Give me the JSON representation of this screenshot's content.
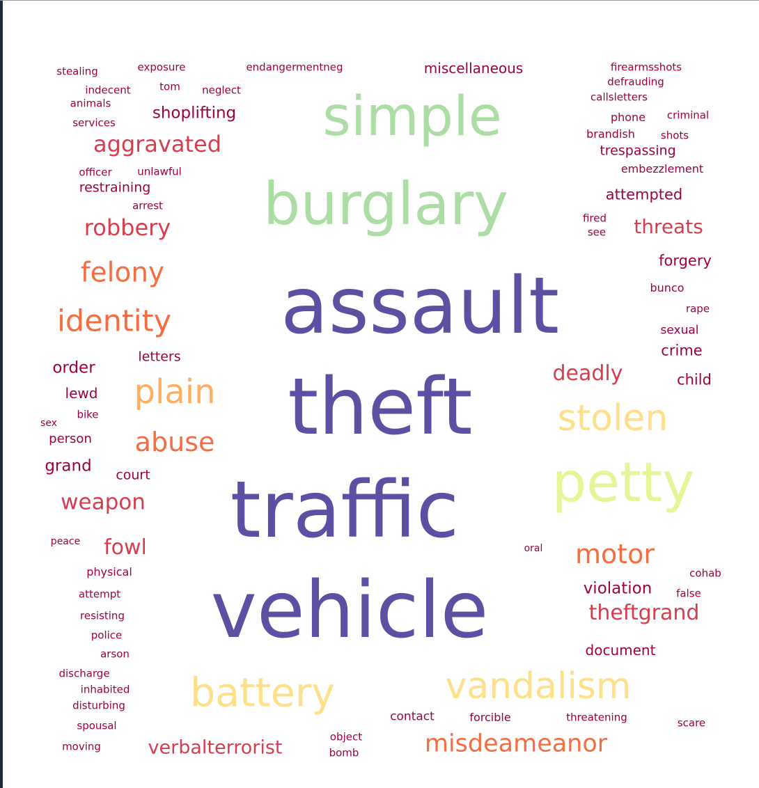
{
  "palette": {
    "dark_red": "#9e0142",
    "crimson": "#d53e4f",
    "orange": "#f46d43",
    "light_orange": "#fdae61",
    "yellow": "#fee08b",
    "pale_yellow": "#e6f598",
    "light_green": "#abdda4",
    "purple": "#5e4fa2"
  },
  "words": [
    {
      "text": "assault",
      "weight": 8,
      "color": "purple"
    },
    {
      "text": "theft",
      "weight": 8,
      "color": "purple"
    },
    {
      "text": "traffic",
      "weight": 8,
      "color": "purple"
    },
    {
      "text": "vehicle",
      "weight": 8,
      "color": "purple"
    },
    {
      "text": "simple",
      "weight": 7,
      "color": "light_green"
    },
    {
      "text": "burglary",
      "weight": 7,
      "color": "light_green"
    },
    {
      "text": "petty",
      "weight": 6,
      "color": "pale_yellow"
    },
    {
      "text": "stolen",
      "weight": 5,
      "color": "yellow"
    },
    {
      "text": "battery",
      "weight": 5,
      "color": "yellow"
    },
    {
      "text": "vandalism",
      "weight": 5,
      "color": "yellow"
    },
    {
      "text": "plain",
      "weight": 4,
      "color": "light_orange"
    },
    {
      "text": "felony",
      "weight": 3,
      "color": "orange"
    },
    {
      "text": "identity",
      "weight": 3,
      "color": "orange"
    },
    {
      "text": "abuse",
      "weight": 3,
      "color": "orange"
    },
    {
      "text": "motor",
      "weight": 3,
      "color": "orange"
    },
    {
      "text": "misdeameanor",
      "weight": 3,
      "color": "orange"
    },
    {
      "text": "aggravated",
      "weight": 3,
      "color": "crimson"
    },
    {
      "text": "robbery",
      "weight": 3,
      "color": "crimson"
    },
    {
      "text": "weapon",
      "weight": 3,
      "color": "crimson"
    },
    {
      "text": "fowl",
      "weight": 3,
      "color": "crimson"
    },
    {
      "text": "deadly",
      "weight": 3,
      "color": "crimson"
    },
    {
      "text": "threats",
      "weight": 3,
      "color": "crimson"
    },
    {
      "text": "theftgrand",
      "weight": 3,
      "color": "crimson"
    },
    {
      "text": "verbalterrorist",
      "weight": 3,
      "color": "crimson"
    },
    {
      "text": "shoplifting",
      "weight": 2,
      "color": "dark_red"
    },
    {
      "text": "miscellaneous",
      "weight": 2,
      "color": "dark_red"
    },
    {
      "text": "trespassing",
      "weight": 2,
      "color": "dark_red"
    },
    {
      "text": "attempted",
      "weight": 2,
      "color": "dark_red"
    },
    {
      "text": "restraining",
      "weight": 2,
      "color": "dark_red"
    },
    {
      "text": "forgery",
      "weight": 2,
      "color": "dark_red"
    },
    {
      "text": "crime",
      "weight": 2,
      "color": "dark_red"
    },
    {
      "text": "child",
      "weight": 2,
      "color": "dark_red"
    },
    {
      "text": "order",
      "weight": 2,
      "color": "dark_red"
    },
    {
      "text": "letters",
      "weight": 2,
      "color": "dark_red"
    },
    {
      "text": "lewd",
      "weight": 2,
      "color": "dark_red"
    },
    {
      "text": "grand",
      "weight": 2,
      "color": "dark_red"
    },
    {
      "text": "person",
      "weight": 2,
      "color": "dark_red"
    },
    {
      "text": "court",
      "weight": 2,
      "color": "dark_red"
    },
    {
      "text": "violation",
      "weight": 2,
      "color": "dark_red"
    },
    {
      "text": "document",
      "weight": 2,
      "color": "dark_red"
    },
    {
      "text": "contact",
      "weight": 2,
      "color": "dark_red"
    },
    {
      "text": "forcible",
      "weight": 2,
      "color": "dark_red"
    },
    {
      "text": "threatening",
      "weight": 2,
      "color": "dark_red"
    },
    {
      "text": "stealing",
      "weight": 1,
      "color": "dark_red"
    },
    {
      "text": "exposure",
      "weight": 1,
      "color": "dark_red"
    },
    {
      "text": "endangermentneg",
      "weight": 1,
      "color": "dark_red"
    },
    {
      "text": "indecent",
      "weight": 1,
      "color": "dark_red"
    },
    {
      "text": "tom",
      "weight": 1,
      "color": "dark_red"
    },
    {
      "text": "neglect",
      "weight": 1,
      "color": "dark_red"
    },
    {
      "text": "animals",
      "weight": 1,
      "color": "dark_red"
    },
    {
      "text": "services",
      "weight": 1,
      "color": "dark_red"
    },
    {
      "text": "officer",
      "weight": 1,
      "color": "dark_red"
    },
    {
      "text": "unlawful",
      "weight": 1,
      "color": "dark_red"
    },
    {
      "text": "arrest",
      "weight": 1,
      "color": "dark_red"
    },
    {
      "text": "firearmsshots",
      "weight": 1,
      "color": "dark_red"
    },
    {
      "text": "defrauding",
      "weight": 1,
      "color": "dark_red"
    },
    {
      "text": "callsletters",
      "weight": 1,
      "color": "dark_red"
    },
    {
      "text": "phone",
      "weight": 1,
      "color": "dark_red"
    },
    {
      "text": "criminal",
      "weight": 1,
      "color": "dark_red"
    },
    {
      "text": "brandish",
      "weight": 1,
      "color": "dark_red"
    },
    {
      "text": "shots",
      "weight": 1,
      "color": "dark_red"
    },
    {
      "text": "embezzlement",
      "weight": 1,
      "color": "dark_red"
    },
    {
      "text": "fired",
      "weight": 1,
      "color": "dark_red"
    },
    {
      "text": "see",
      "weight": 1,
      "color": "dark_red"
    },
    {
      "text": "bunco",
      "weight": 1,
      "color": "dark_red"
    },
    {
      "text": "rape",
      "weight": 1,
      "color": "dark_red"
    },
    {
      "text": "sexual",
      "weight": 1,
      "color": "dark_red"
    },
    {
      "text": "sex",
      "weight": 1,
      "color": "dark_red"
    },
    {
      "text": "bike",
      "weight": 1,
      "color": "dark_red"
    },
    {
      "text": "peace",
      "weight": 1,
      "color": "dark_red"
    },
    {
      "text": "physical",
      "weight": 1,
      "color": "dark_red"
    },
    {
      "text": "attempt",
      "weight": 1,
      "color": "dark_red"
    },
    {
      "text": "resisting",
      "weight": 1,
      "color": "dark_red"
    },
    {
      "text": "police",
      "weight": 1,
      "color": "dark_red"
    },
    {
      "text": "arson",
      "weight": 1,
      "color": "dark_red"
    },
    {
      "text": "discharge",
      "weight": 1,
      "color": "dark_red"
    },
    {
      "text": "inhabited",
      "weight": 1,
      "color": "dark_red"
    },
    {
      "text": "disturbing",
      "weight": 1,
      "color": "dark_red"
    },
    {
      "text": "spousal",
      "weight": 1,
      "color": "dark_red"
    },
    {
      "text": "moving",
      "weight": 1,
      "color": "dark_red"
    },
    {
      "text": "object",
      "weight": 1,
      "color": "dark_red"
    },
    {
      "text": "bomb",
      "weight": 1,
      "color": "dark_red"
    },
    {
      "text": "oral",
      "weight": 1,
      "color": "dark_red"
    },
    {
      "text": "cohab",
      "weight": 1,
      "color": "dark_red"
    },
    {
      "text": "false",
      "weight": 1,
      "color": "dark_red"
    },
    {
      "text": "scare",
      "weight": 1,
      "color": "dark_red"
    }
  ]
}
